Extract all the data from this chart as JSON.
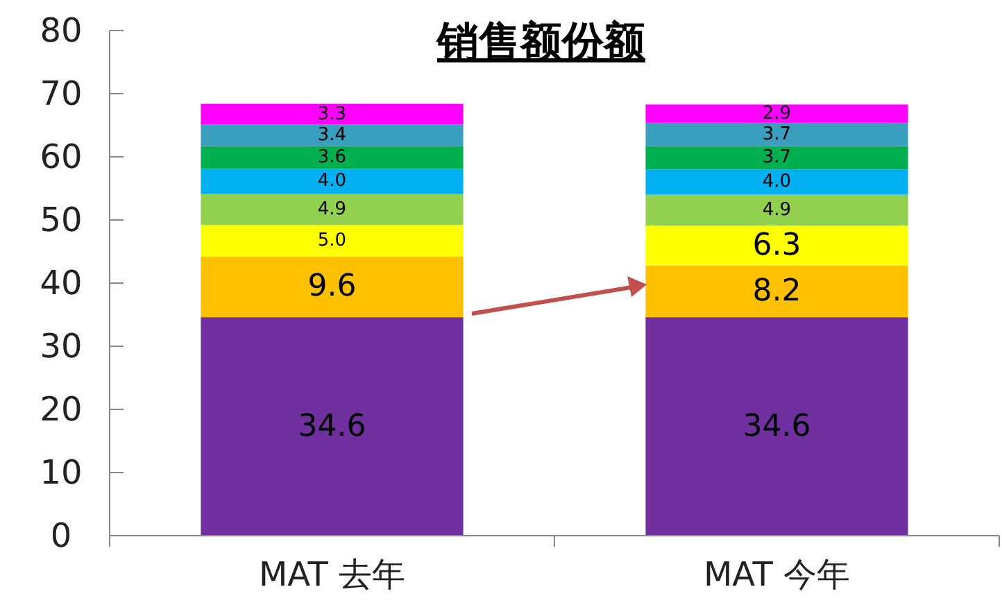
{
  "chart_data": {
    "type": "bar",
    "title": "销售额份额",
    "categories": [
      "MAT 去年",
      "MAT 今年"
    ],
    "stacked": true,
    "ylim": [
      0,
      80
    ],
    "yticks": [
      0,
      10,
      20,
      30,
      40,
      50,
      60,
      70,
      80
    ],
    "series": [
      {
        "color": "#7030a0",
        "values": [
          34.6,
          34.6
        ],
        "value_labels": [
          "34.6",
          "34.6"
        ]
      },
      {
        "color": "#ffc000",
        "values": [
          9.6,
          8.2
        ],
        "value_labels": [
          "9.6",
          "8.2"
        ]
      },
      {
        "color": "#ffff00",
        "values": [
          5.0,
          6.3
        ],
        "value_labels": [
          "5.0",
          "6.3"
        ]
      },
      {
        "color": "#92d050",
        "values": [
          4.9,
          4.9
        ],
        "value_labels": [
          "4.9",
          "4.9"
        ]
      },
      {
        "color": "#00b0f0",
        "values": [
          4.0,
          4.0
        ],
        "value_labels": [
          "4.0",
          "4.0"
        ]
      },
      {
        "color": "#00b050",
        "values": [
          3.6,
          3.7
        ],
        "value_labels": [
          "3.6",
          "3.7"
        ]
      },
      {
        "color": "#3a9fbf",
        "values": [
          3.4,
          3.7
        ],
        "value_labels": [
          "3.4",
          "3.7"
        ]
      },
      {
        "color": "#ff00ff",
        "values": [
          3.3,
          2.9
        ],
        "value_labels": [
          "3.3",
          "2.9"
        ]
      }
    ]
  }
}
